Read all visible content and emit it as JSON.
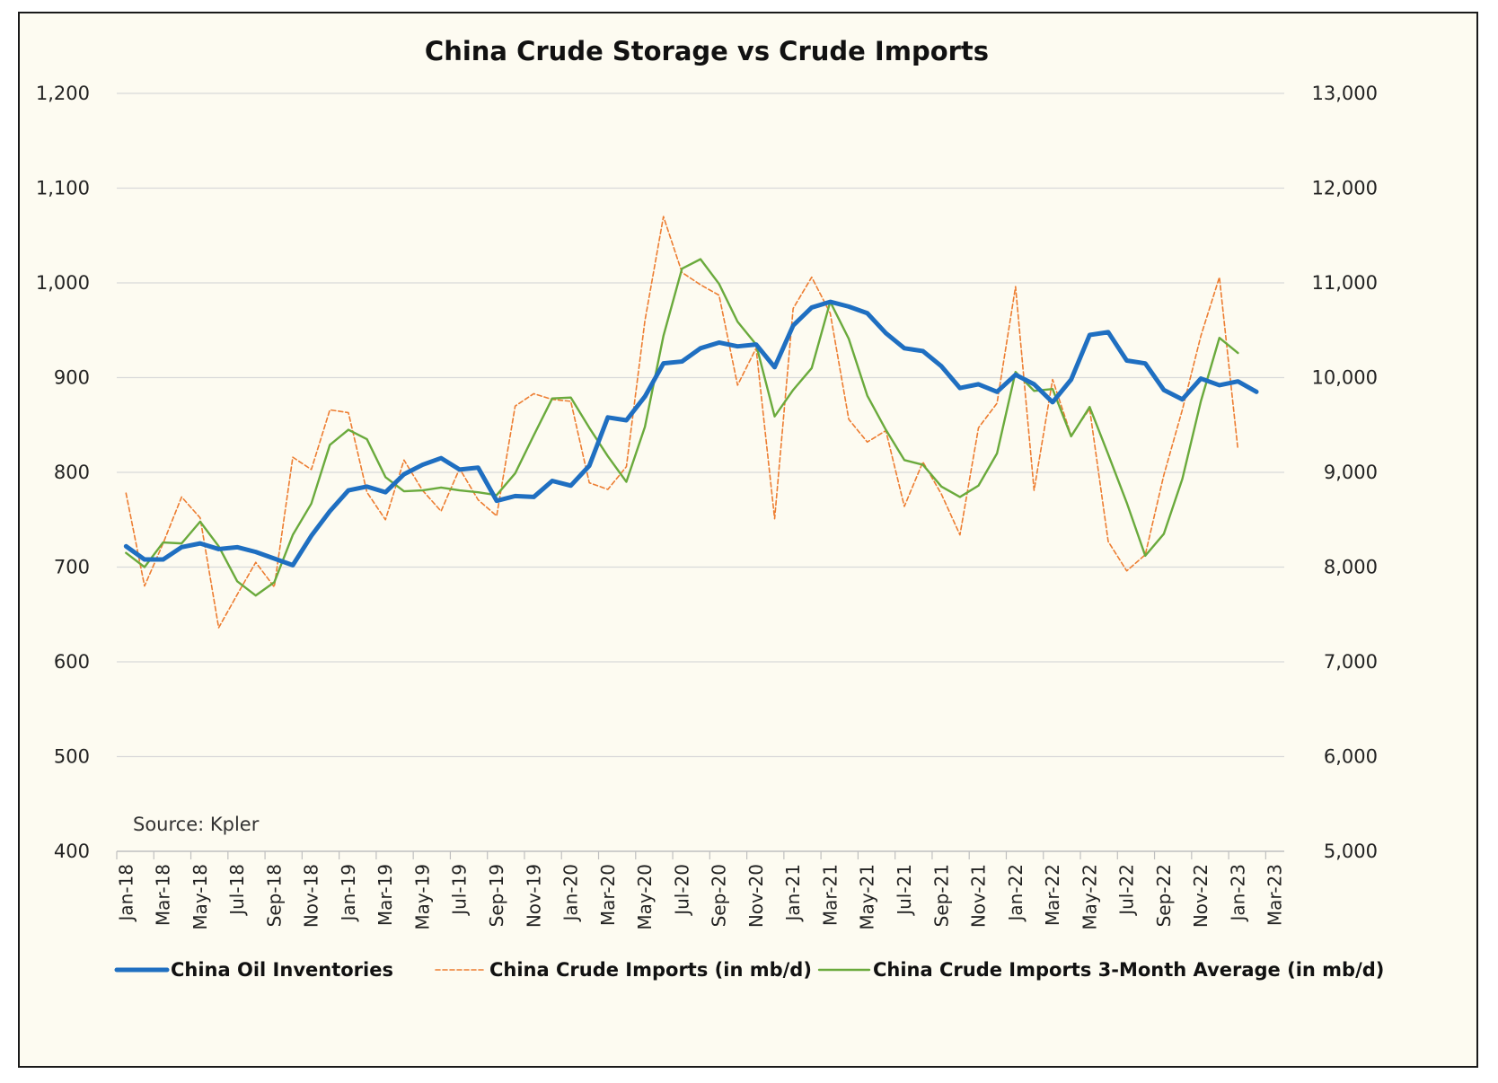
{
  "chart_data": {
    "type": "line",
    "title": "China Crude Storage vs Crude Imports",
    "annotation": "Source: Kpler",
    "x_tick_labels": [
      "Jan-18",
      "Mar-18",
      "May-18",
      "Jul-18",
      "Sep-18",
      "Nov-18",
      "Jan-19",
      "Mar-19",
      "May-19",
      "Jul-19",
      "Sep-19",
      "Nov-19",
      "Jan-20",
      "Mar-20",
      "May-20",
      "Jul-20",
      "Sep-20",
      "Nov-20",
      "Jan-21",
      "Mar-21",
      "May-21",
      "Jul-21",
      "Sep-21",
      "Nov-21",
      "Jan-22",
      "Mar-22",
      "May-22",
      "Jul-22",
      "Sep-22",
      "Nov-22",
      "Jan-23",
      "Mar-23"
    ],
    "x_months": [
      "Jan-18",
      "Feb-18",
      "Mar-18",
      "Apr-18",
      "May-18",
      "Jun-18",
      "Jul-18",
      "Aug-18",
      "Sep-18",
      "Oct-18",
      "Nov-18",
      "Dec-18",
      "Jan-19",
      "Feb-19",
      "Mar-19",
      "Apr-19",
      "May-19",
      "Jun-19",
      "Jul-19",
      "Aug-19",
      "Sep-19",
      "Oct-19",
      "Nov-19",
      "Dec-19",
      "Jan-20",
      "Feb-20",
      "Mar-20",
      "Apr-20",
      "May-20",
      "Jun-20",
      "Jul-20",
      "Aug-20",
      "Sep-20",
      "Oct-20",
      "Nov-20",
      "Dec-20",
      "Jan-21",
      "Feb-21",
      "Mar-21",
      "Apr-21",
      "May-21",
      "Jun-21",
      "Jul-21",
      "Aug-21",
      "Sep-21",
      "Oct-21",
      "Nov-21",
      "Dec-21",
      "Jan-22",
      "Feb-22",
      "Mar-22",
      "Apr-22",
      "May-22",
      "Jun-22",
      "Jul-22",
      "Aug-22",
      "Sep-22",
      "Oct-22",
      "Nov-22",
      "Dec-22",
      "Jan-23",
      "Feb-23",
      "Mar-23"
    ],
    "y_left": {
      "min": 400,
      "max": 1200,
      "step": 100,
      "tick_labels": [
        "400",
        "500",
        "600",
        "700",
        "800",
        "900",
        "1,000",
        "1,100",
        "1,200"
      ]
    },
    "y_right": {
      "min": 5000,
      "max": 13000,
      "step": 1000,
      "tick_labels": [
        "5,000",
        "6,000",
        "7,000",
        "8,000",
        "9,000",
        "10,000",
        "11,000",
        "12,000",
        "13,000"
      ]
    },
    "grid": "horizontal",
    "legend_position": "bottom",
    "series": [
      {
        "name": "China Oil Inventories",
        "axis": "left",
        "color": "#1f6fc1",
        "style": "solid-thick",
        "values": [
          722,
          708,
          708,
          721,
          725,
          719,
          721,
          716,
          709,
          702,
          733,
          759,
          781,
          785,
          779,
          798,
          808,
          815,
          803,
          805,
          770,
          775,
          774,
          791,
          786,
          807,
          858,
          855,
          880,
          915,
          917,
          931,
          937,
          933,
          935,
          911,
          955,
          974,
          980,
          975,
          968,
          947,
          931,
          928,
          912,
          889,
          893,
          885,
          903,
          893,
          874,
          898,
          945,
          948,
          918,
          915,
          887,
          877,
          899,
          892,
          896,
          885,
          null
        ]
      },
      {
        "name": "China Crude Imports (in mb/d)",
        "axis": "right",
        "color": "#ed7d31",
        "style": "dashed",
        "values": [
          8780,
          7800,
          8250,
          8740,
          8520,
          7360,
          7710,
          8050,
          7790,
          9160,
          9030,
          9660,
          9630,
          8790,
          8500,
          9130,
          8810,
          8590,
          9040,
          8710,
          8540,
          9700,
          9830,
          9770,
          9750,
          8890,
          8820,
          9060,
          10600,
          11700,
          11110,
          10980,
          10870,
          9920,
          10310,
          8510,
          10730,
          11060,
          10680,
          9560,
          9320,
          9440,
          8640,
          9110,
          8770,
          8340,
          9470,
          9730,
          10960,
          8810,
          9980,
          9390,
          9670,
          8270,
          7960,
          8130,
          8970,
          9660,
          10440,
          11060,
          9240,
          null,
          null
        ]
      },
      {
        "name": "China Crude Imports 3-Month Average (in mb/d)",
        "axis": "right",
        "color": "#6aaa3c",
        "style": "solid",
        "values": [
          8150,
          8000,
          8260,
          8250,
          8480,
          8220,
          7850,
          7700,
          7840,
          8340,
          8670,
          9290,
          9450,
          9350,
          8950,
          8800,
          8810,
          8840,
          8810,
          8790,
          8760,
          8990,
          9390,
          9780,
          9790,
          9470,
          9170,
          8900,
          9480,
          10440,
          11150,
          11250,
          10990,
          10590,
          10350,
          9590,
          9870,
          10100,
          10800,
          10410,
          9810,
          9450,
          9130,
          9080,
          8850,
          8740,
          8860,
          9200,
          10060,
          9860,
          9880,
          9380,
          9690,
          9190,
          8680,
          8120,
          8350,
          8930,
          9750,
          10420,
          10260,
          null,
          null
        ]
      }
    ]
  }
}
